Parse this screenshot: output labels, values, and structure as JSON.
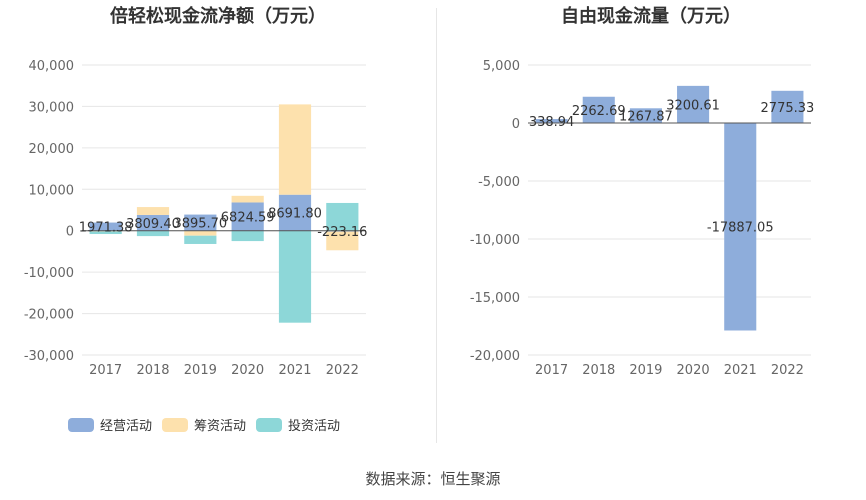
{
  "colors": {
    "operating": "#8eaddb",
    "financing": "#fde1ad",
    "investing": "#8dd7d8",
    "grid": "#e6e6e6",
    "axis_text": "#666666"
  },
  "source": "数据来源：恒生聚源",
  "chart_data": [
    {
      "type": "bar",
      "stacked": true,
      "title": "倍轻松现金流净额（万元）",
      "categories": [
        "2017",
        "2018",
        "2019",
        "2020",
        "2021",
        "2022"
      ],
      "ylim": [
        -30000,
        40000
      ],
      "yticks": [
        -30000,
        -20000,
        -10000,
        0,
        10000,
        20000,
        30000,
        40000
      ],
      "ytick_labels": [
        "-30,000",
        "-20,000",
        "-10,000",
        "0",
        "10,000",
        "20,000",
        "30,000",
        "40,000"
      ],
      "legend": "bottom-left",
      "series": [
        {
          "name": "经营活动",
          "key": "operating",
          "values": [
            1971.38,
            3809.4,
            3895.7,
            6824.59,
            8691.8,
            -223.16
          ],
          "data_labels": [
            "1971.38",
            "3809.40",
            "3895.70",
            "6824.59",
            "8691.80",
            "-223.16"
          ]
        },
        {
          "name": "筹资活动",
          "key": "financing",
          "values": [
            -200,
            1900,
            -1200,
            1600,
            21800,
            -4500
          ]
        },
        {
          "name": "投资活动",
          "key": "investing",
          "values": [
            -600,
            -1300,
            -2000,
            -2500,
            -22200,
            6700
          ]
        }
      ]
    },
    {
      "type": "bar",
      "title": "自由现金流量（万元）",
      "categories": [
        "2017",
        "2018",
        "2019",
        "2020",
        "2021",
        "2022"
      ],
      "ylim": [
        -20000,
        5000
      ],
      "yticks": [
        -20000,
        -15000,
        -10000,
        -5000,
        0,
        5000
      ],
      "ytick_labels": [
        "-20,000",
        "-15,000",
        "-10,000",
        "-5,000",
        "0",
        "5,000"
      ],
      "series": [
        {
          "key": "operating",
          "values": [
            338.94,
            2262.69,
            1267.87,
            3200.61,
            -17887.05,
            2775.33
          ],
          "data_labels": [
            "338.94",
            "2262.69",
            "1267.87",
            "3200.61",
            "-17887.05",
            "2775.33"
          ]
        }
      ]
    }
  ]
}
